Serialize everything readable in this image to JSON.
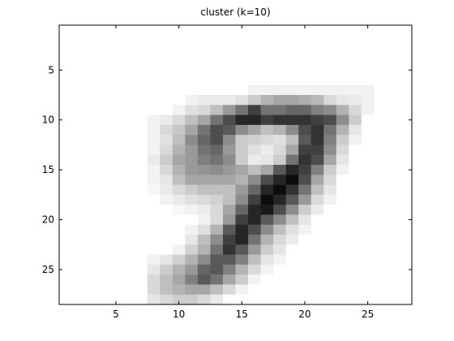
{
  "chart_data": {
    "type": "heatmap",
    "title": "cluster (k=10)",
    "xlabel": "",
    "ylabel": "",
    "xlim": [
      0.5,
      28.5
    ],
    "ylim": [
      0.5,
      28.5
    ],
    "y_reversed": true,
    "xticks": [
      5,
      10,
      15,
      20,
      25
    ],
    "yticks": [
      5,
      10,
      15,
      20,
      25
    ],
    "colormap": "gray-inverted",
    "grid": false,
    "rows": 28,
    "cols": 28,
    "value_range": [
      0,
      1
    ],
    "values": [
      [
        0,
        0,
        0,
        0,
        0,
        0,
        0,
        0,
        0,
        0,
        0,
        0,
        0,
        0,
        0,
        0,
        0,
        0,
        0,
        0,
        0,
        0,
        0,
        0,
        0,
        0,
        0,
        0
      ],
      [
        0,
        0,
        0,
        0,
        0,
        0,
        0,
        0,
        0,
        0,
        0,
        0,
        0,
        0,
        0,
        0,
        0,
        0,
        0,
        0,
        0,
        0,
        0,
        0,
        0,
        0,
        0,
        0
      ],
      [
        0,
        0,
        0,
        0,
        0,
        0,
        0,
        0,
        0,
        0,
        0,
        0,
        0,
        0,
        0,
        0,
        0,
        0,
        0,
        0,
        0,
        0,
        0,
        0,
        0,
        0,
        0,
        0
      ],
      [
        0,
        0,
        0,
        0,
        0,
        0,
        0,
        0,
        0,
        0,
        0,
        0,
        0,
        0,
        0,
        0,
        0,
        0,
        0,
        0,
        0,
        0,
        0,
        0,
        0,
        0,
        0,
        0
      ],
      [
        0,
        0,
        0,
        0,
        0,
        0,
        0,
        0,
        0,
        0,
        0,
        0,
        0,
        0,
        0,
        0,
        0,
        0,
        0,
        0,
        0,
        0,
        0,
        0,
        0,
        0,
        0,
        0
      ],
      [
        0,
        0,
        0,
        0,
        0,
        0,
        0,
        0,
        0,
        0,
        0,
        0,
        0,
        0,
        0,
        0,
        0,
        0,
        0,
        0,
        0,
        0,
        0,
        0,
        0,
        0,
        0,
        0
      ],
      [
        0,
        0,
        0,
        0,
        0,
        0,
        0,
        0,
        0,
        0,
        0,
        0,
        0,
        0,
        0,
        0.05,
        0.05,
        0.05,
        0.05,
        0.05,
        0.05,
        0.05,
        0.05,
        0.05,
        0.05,
        0,
        0,
        0
      ],
      [
        0,
        0,
        0,
        0,
        0,
        0,
        0,
        0,
        0,
        0,
        0.05,
        0.08,
        0.08,
        0.08,
        0.12,
        0.2,
        0.3,
        0.35,
        0.35,
        0.32,
        0.28,
        0.15,
        0.1,
        0.08,
        0.05,
        0,
        0,
        0
      ],
      [
        0,
        0,
        0,
        0,
        0,
        0,
        0,
        0,
        0,
        0.05,
        0.12,
        0.15,
        0.25,
        0.4,
        0.55,
        0.75,
        0.55,
        0.55,
        0.6,
        0.6,
        0.5,
        0.45,
        0.3,
        0.15,
        0.05,
        0,
        0,
        0
      ],
      [
        0,
        0,
        0,
        0,
        0,
        0,
        0,
        0.05,
        0.08,
        0.15,
        0.25,
        0.35,
        0.55,
        0.7,
        0.85,
        0.85,
        0.75,
        0.8,
        0.8,
        0.8,
        0.75,
        0.7,
        0.45,
        0.2,
        0,
        0,
        0,
        0
      ],
      [
        0,
        0,
        0,
        0,
        0,
        0,
        0,
        0.05,
        0.15,
        0.22,
        0.35,
        0.55,
        0.7,
        0.65,
        0.45,
        0.35,
        0.25,
        0.3,
        0.45,
        0.7,
        0.8,
        0.55,
        0.3,
        0.1,
        0,
        0,
        0,
        0
      ],
      [
        0,
        0,
        0,
        0,
        0,
        0,
        0,
        0.05,
        0.12,
        0.25,
        0.45,
        0.6,
        0.7,
        0.45,
        0.2,
        0.18,
        0.15,
        0.12,
        0.25,
        0.65,
        0.8,
        0.5,
        0.2,
        0.05,
        0,
        0,
        0,
        0
      ],
      [
        0,
        0,
        0,
        0,
        0,
        0,
        0,
        0.05,
        0.15,
        0.3,
        0.4,
        0.55,
        0.6,
        0.4,
        0.2,
        0.12,
        0.08,
        0.15,
        0.35,
        0.75,
        0.75,
        0.45,
        0.15,
        0,
        0,
        0,
        0,
        0
      ],
      [
        0,
        0,
        0,
        0,
        0,
        0,
        0,
        0.08,
        0.2,
        0.35,
        0.4,
        0.5,
        0.55,
        0.45,
        0.2,
        0.08,
        0.1,
        0.2,
        0.55,
        0.8,
        0.7,
        0.35,
        0.1,
        0,
        0,
        0,
        0,
        0
      ],
      [
        0,
        0,
        0,
        0,
        0,
        0,
        0,
        0.05,
        0.15,
        0.3,
        0.4,
        0.42,
        0.45,
        0.4,
        0.35,
        0.25,
        0.35,
        0.65,
        0.85,
        0.75,
        0.5,
        0.2,
        0.05,
        0,
        0,
        0,
        0,
        0
      ],
      [
        0,
        0,
        0,
        0,
        0,
        0,
        0,
        0.05,
        0.1,
        0.25,
        0.35,
        0.35,
        0.35,
        0.35,
        0.3,
        0.45,
        0.7,
        0.85,
        0.95,
        0.7,
        0.35,
        0.15,
        0,
        0,
        0,
        0,
        0,
        0
      ],
      [
        0,
        0,
        0,
        0,
        0,
        0,
        0,
        0.03,
        0.08,
        0.15,
        0.2,
        0.25,
        0.25,
        0.25,
        0.4,
        0.6,
        0.85,
        0.95,
        0.8,
        0.55,
        0.25,
        0.1,
        0,
        0,
        0,
        0,
        0,
        0
      ],
      [
        0,
        0,
        0,
        0,
        0,
        0,
        0,
        0,
        0.05,
        0.08,
        0.12,
        0.15,
        0.18,
        0.25,
        0.45,
        0.75,
        0.95,
        0.85,
        0.65,
        0.4,
        0.15,
        0.05,
        0,
        0,
        0,
        0,
        0,
        0
      ],
      [
        0,
        0,
        0,
        0,
        0,
        0,
        0,
        0,
        0,
        0.03,
        0.05,
        0.08,
        0.15,
        0.35,
        0.6,
        0.85,
        0.9,
        0.7,
        0.45,
        0.2,
        0.08,
        0,
        0,
        0,
        0,
        0,
        0,
        0
      ],
      [
        0,
        0,
        0,
        0,
        0,
        0,
        0,
        0,
        0,
        0,
        0,
        0.05,
        0.15,
        0.4,
        0.75,
        0.85,
        0.65,
        0.45,
        0.25,
        0.1,
        0,
        0,
        0,
        0,
        0,
        0,
        0,
        0
      ],
      [
        0,
        0,
        0,
        0,
        0,
        0,
        0,
        0,
        0,
        0,
        0.05,
        0.12,
        0.3,
        0.65,
        0.85,
        0.7,
        0.45,
        0.25,
        0.12,
        0.05,
        0,
        0,
        0,
        0,
        0,
        0,
        0,
        0
      ],
      [
        0,
        0,
        0,
        0,
        0,
        0,
        0,
        0,
        0,
        0,
        0.1,
        0.25,
        0.45,
        0.75,
        0.85,
        0.55,
        0.3,
        0.15,
        0.08,
        0,
        0,
        0,
        0,
        0,
        0,
        0,
        0,
        0
      ],
      [
        0,
        0,
        0,
        0,
        0,
        0,
        0,
        0,
        0,
        0.05,
        0.18,
        0.3,
        0.55,
        0.8,
        0.65,
        0.4,
        0.2,
        0.1,
        0,
        0,
        0,
        0,
        0,
        0,
        0,
        0,
        0,
        0
      ],
      [
        0,
        0,
        0,
        0,
        0,
        0,
        0,
        0.05,
        0.1,
        0.18,
        0.3,
        0.45,
        0.65,
        0.65,
        0.5,
        0.25,
        0.1,
        0.05,
        0,
        0,
        0,
        0,
        0,
        0,
        0,
        0,
        0,
        0
      ],
      [
        0,
        0,
        0,
        0,
        0,
        0,
        0,
        0.1,
        0.2,
        0.3,
        0.4,
        0.6,
        0.65,
        0.5,
        0.3,
        0.15,
        0.05,
        0,
        0,
        0,
        0,
        0,
        0,
        0,
        0,
        0,
        0,
        0
      ],
      [
        0,
        0,
        0,
        0,
        0,
        0,
        0,
        0.15,
        0.25,
        0.35,
        0.5,
        0.65,
        0.55,
        0.35,
        0.2,
        0.05,
        0,
        0,
        0,
        0,
        0,
        0,
        0,
        0,
        0,
        0,
        0,
        0
      ],
      [
        0,
        0,
        0,
        0,
        0,
        0,
        0,
        0.15,
        0.25,
        0.3,
        0.35,
        0.35,
        0.25,
        0.15,
        0.05,
        0,
        0,
        0,
        0,
        0,
        0,
        0,
        0,
        0,
        0,
        0,
        0,
        0
      ],
      [
        0,
        0,
        0,
        0,
        0,
        0,
        0,
        0.1,
        0.15,
        0.2,
        0.2,
        0.15,
        0.08,
        0,
        0,
        0,
        0,
        0,
        0,
        0,
        0,
        0,
        0,
        0,
        0,
        0,
        0,
        0
      ]
    ]
  }
}
